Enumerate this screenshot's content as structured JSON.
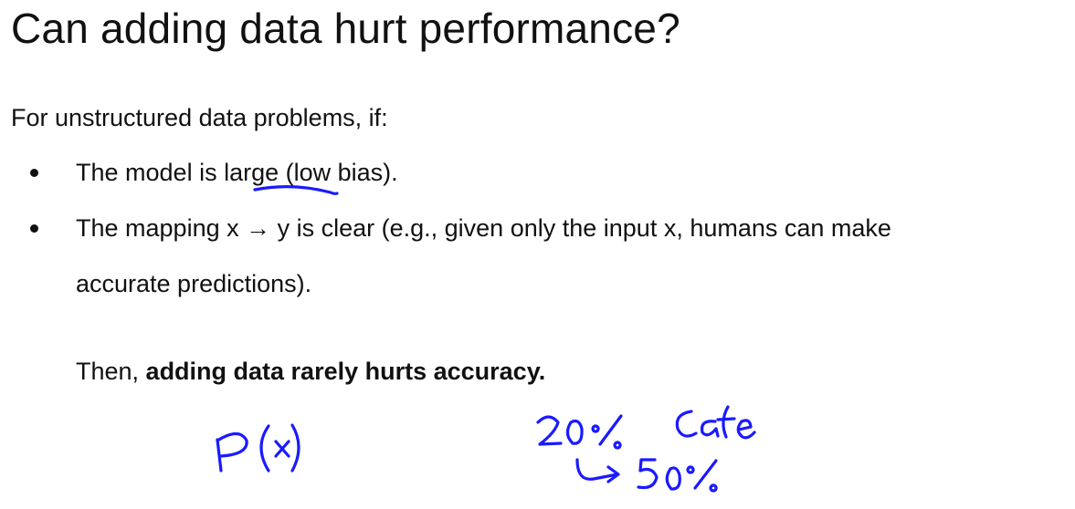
{
  "slide": {
    "title": "Can adding data hurt performance?",
    "intro": "For unstructured data problems, if:",
    "bullets": [
      "The model is large (low bias).",
      "The mapping x → y is clear (e.g., given only the input x, humans can make",
      "accurate predictions)."
    ],
    "conclusion": {
      "prefix": "Then, ",
      "bold": "adding data rarely hurts accuracy."
    }
  },
  "annotations": {
    "ink_color": "#1a1aff",
    "handwritten": [
      "P(x)",
      "20% Cafe",
      "↳ 50%"
    ]
  }
}
